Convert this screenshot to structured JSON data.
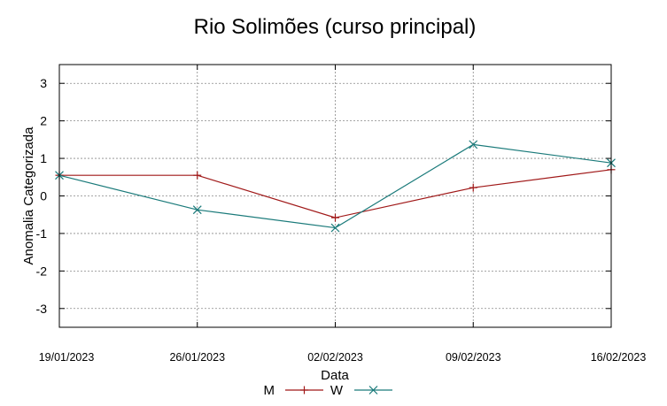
{
  "chart_data": {
    "type": "line",
    "title": "Rio Solimões (curso principal)",
    "xlabel": "Data",
    "ylabel": "Anomalia Categorizada",
    "categories": [
      "19/01/2023",
      "26/01/2023",
      "02/02/2023",
      "09/02/2023",
      "16/02/2023"
    ],
    "ylim": [
      -3.5,
      3.5
    ],
    "yticks": [
      -3,
      -2,
      -1,
      0,
      1,
      2,
      3
    ],
    "grid": true,
    "legend_position": "bottom",
    "series": [
      {
        "name": "M",
        "color": "#a01818",
        "marker": "plus",
        "values": [
          0.55,
          0.55,
          -0.58,
          0.22,
          0.7
        ]
      },
      {
        "name": "W",
        "color": "#1a7a7a",
        "marker": "cross",
        "values": [
          0.55,
          -0.37,
          -0.85,
          1.37,
          0.88
        ]
      }
    ]
  }
}
